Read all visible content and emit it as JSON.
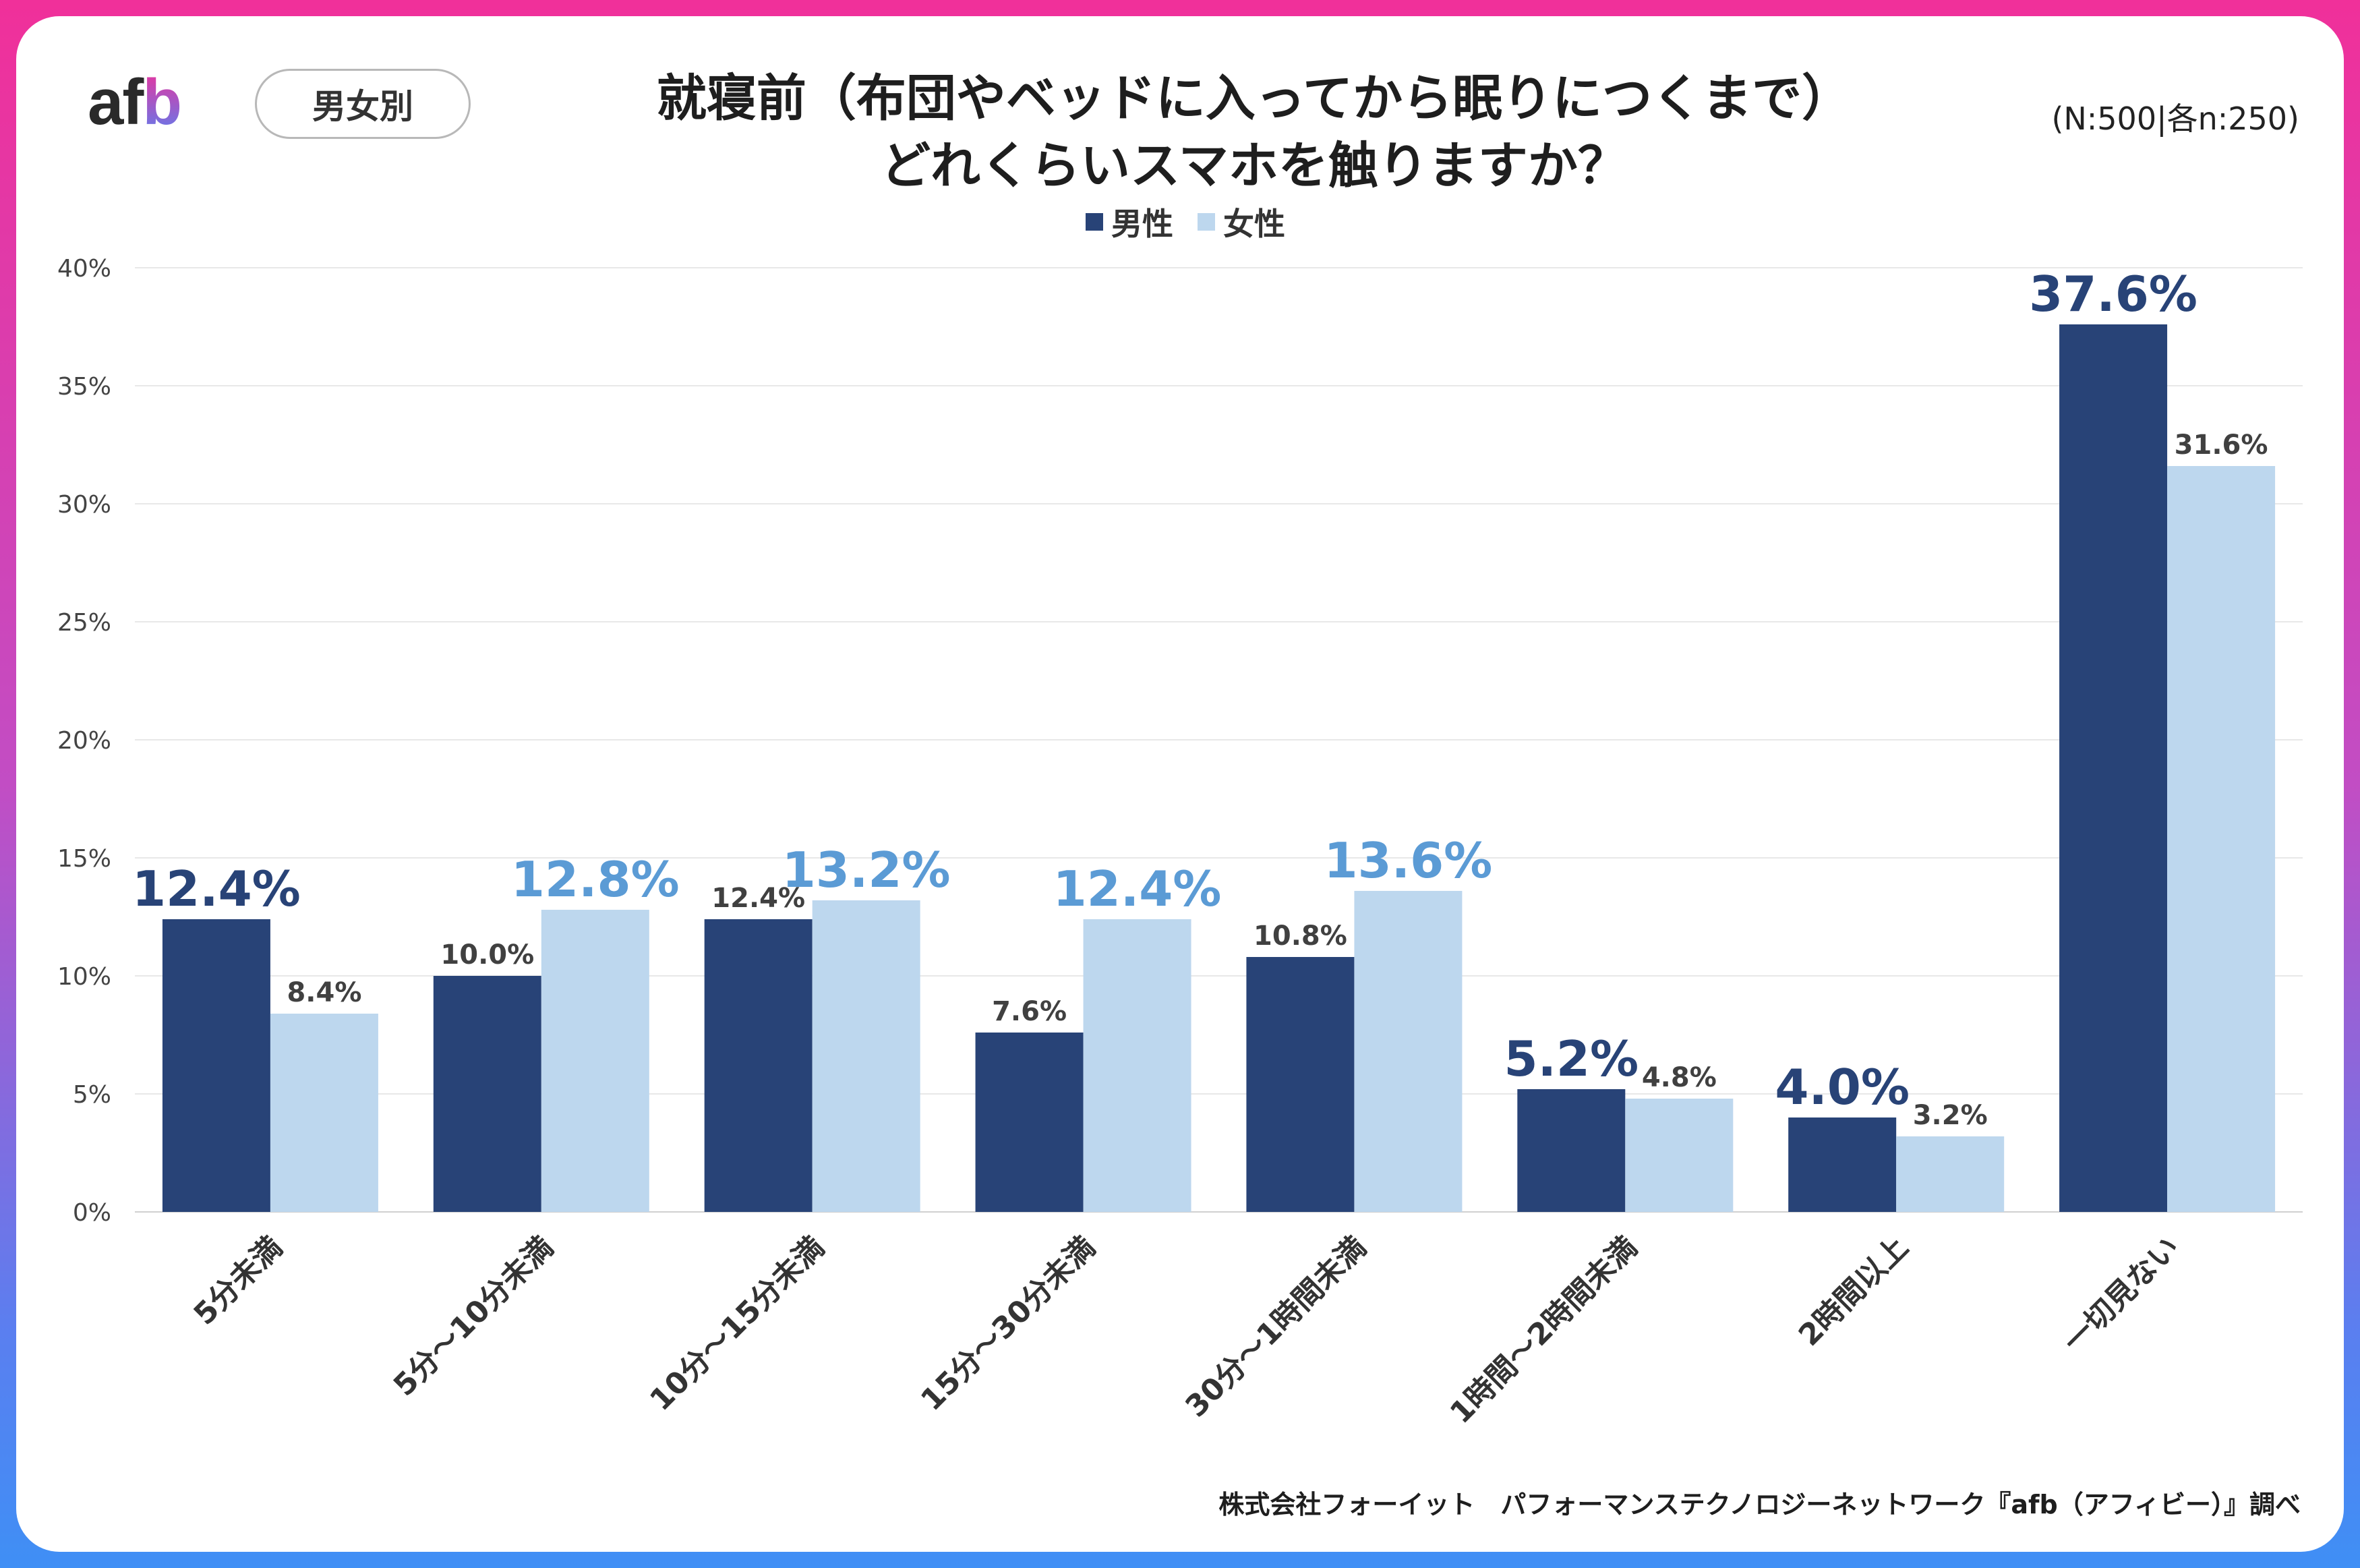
{
  "brand": {
    "logo_main": "af",
    "logo_accent": "b"
  },
  "segment_pill": "男女別",
  "title_line1": "就寝前（布団やベッドに入ってから眠りにつくまで）",
  "title_line2": "どれくらいスマホを触りますか？",
  "sample_size": "(N:500|各n:250)",
  "footer_credit": "株式会社フォーイット　パフォーマンステクノロジーネットワーク『afb（アフィビー）』調べ",
  "colors": {
    "male": "#284377",
    "female": "#bdd7ee",
    "highlight_male_label": "#284377",
    "highlight_female_label": "#5b9bd5",
    "normal_label": "#404040"
  },
  "chart_data": {
    "type": "bar",
    "title": "就寝前（布団やベッドに入ってから眠りにつくまで）どれくらいスマホを触りますか？",
    "categories": [
      "5分未満",
      "5分～10分未満",
      "10分～15分未満",
      "15分～30分未満",
      "30分～1時間未満",
      "1時間～2時間未満",
      "2時間以上",
      "一切見ない"
    ],
    "series": [
      {
        "name": "男性",
        "values": [
          12.4,
          10.0,
          12.4,
          7.6,
          10.8,
          5.2,
          4.0,
          37.6
        ],
        "labels": [
          "12.4%",
          "10.0%",
          "12.4%",
          "7.6%",
          "10.8%",
          "5.2%",
          "4.0%",
          "37.6%"
        ],
        "highlight": [
          true,
          false,
          false,
          false,
          false,
          true,
          true,
          true
        ]
      },
      {
        "name": "女性",
        "values": [
          8.4,
          12.8,
          13.2,
          12.4,
          13.6,
          4.8,
          3.2,
          31.6
        ],
        "labels": [
          "8.4%",
          "12.8%",
          "13.2%",
          "12.4%",
          "13.6%",
          "4.8%",
          "3.2%",
          "31.6%"
        ],
        "highlight": [
          false,
          true,
          true,
          true,
          true,
          false,
          false,
          false
        ]
      }
    ],
    "yticks": [
      "0%",
      "5%",
      "10%",
      "15%",
      "20%",
      "25%",
      "30%",
      "35%",
      "40%"
    ],
    "ylim": [
      0,
      40
    ],
    "xlabel": "",
    "ylabel": "",
    "grid": true,
    "legend": "top-center"
  }
}
